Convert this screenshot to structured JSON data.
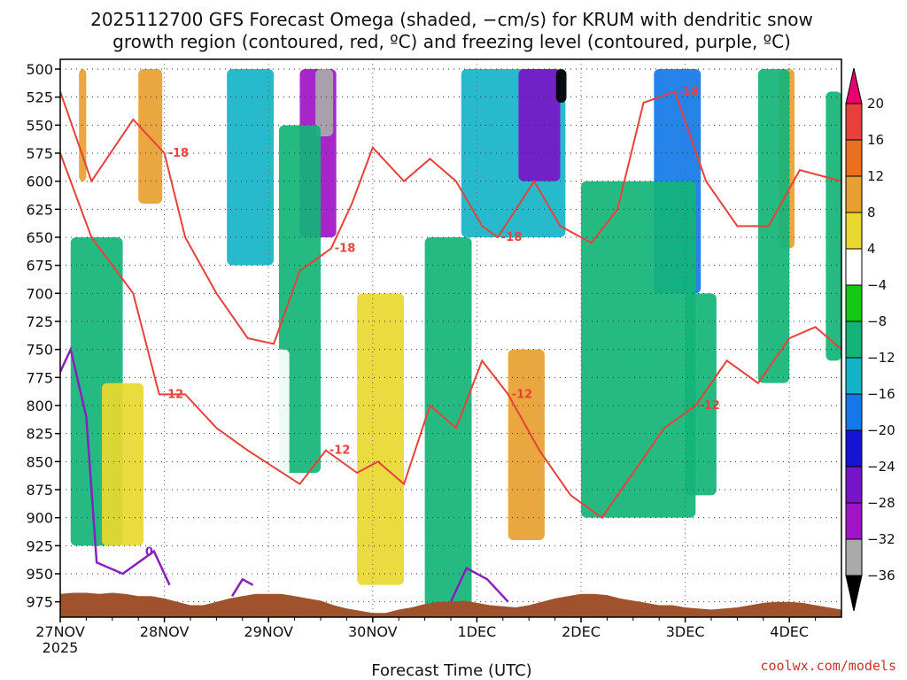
{
  "chart_data": {
    "type": "heatmap",
    "title_line1": "2025112700 GFS Forecast Omega (shaded, −cm/s) for KRUM with dendritic snow",
    "title_line2": "growth region (contoured, red, ºC) and freezing level (contoured, purple, ºC)",
    "xlabel": "Forecast Time (UTC)",
    "credit": "coolwx.com/models",
    "x_ticks": [
      "27NOV",
      "28NOV",
      "29NOV",
      "30NOV",
      "1DEC",
      "2DEC",
      "3DEC",
      "4DEC"
    ],
    "x_year": "2025",
    "x_range_days": [
      0,
      7.5
    ],
    "y_ticks": [
      500,
      525,
      550,
      575,
      600,
      625,
      650,
      675,
      700,
      725,
      750,
      775,
      800,
      825,
      850,
      875,
      900,
      925,
      950,
      975
    ],
    "y_range_hpa": [
      500,
      990
    ],
    "grid": true,
    "colorbar": {
      "levels": [
        20,
        16,
        12,
        8,
        4,
        -4,
        -8,
        -12,
        -16,
        -20,
        -24,
        -28,
        -32,
        -36
      ],
      "labels": [
        "20",
        "16",
        "12",
        "8",
        "4",
        "−4",
        "−8",
        "−12",
        "−16",
        "−20",
        "−24",
        "−28",
        "−32",
        "−36"
      ],
      "colors": [
        "#e8006e",
        "#e8403a",
        "#e8701e",
        "#e8a030",
        "#e8d830",
        "#ffffff",
        "#14c814",
        "#14b478",
        "#14b4c8",
        "#1478e8",
        "#1414d2",
        "#7814c8",
        "#a014c8",
        "#aaaaaa",
        "#000000"
      ]
    },
    "omega_blobs": [
      {
        "x": [
          0.18,
          0.25
        ],
        "p": [
          500,
          600
        ],
        "v": 12
      },
      {
        "x": [
          0.75,
          0.98
        ],
        "p": [
          500,
          620
        ],
        "v": 12
      },
      {
        "x": [
          1.6,
          2.05
        ],
        "p": [
          500,
          675
        ],
        "v": -12
      },
      {
        "x": [
          2.3,
          2.65
        ],
        "p": [
          500,
          650
        ],
        "v": -28
      },
      {
        "x": [
          2.45,
          2.62
        ],
        "p": [
          500,
          560
        ],
        "v": -32
      },
      {
        "x": [
          3.85,
          4.85
        ],
        "p": [
          500,
          650
        ],
        "v": -12
      },
      {
        "x": [
          4.4,
          4.8
        ],
        "p": [
          500,
          600
        ],
        "v": -24
      },
      {
        "x": [
          4.76,
          4.86
        ],
        "p": [
          500,
          530
        ],
        "v": -36
      },
      {
        "x": [
          5.7,
          6.15
        ],
        "p": [
          500,
          700
        ],
        "v": -16
      },
      {
        "x": [
          6.9,
          7.05
        ],
        "p": [
          500,
          660
        ],
        "v": 12
      },
      {
        "x": [
          0.1,
          0.6
        ],
        "p": [
          650,
          925
        ],
        "v": -8
      },
      {
        "x": [
          0.4,
          0.8
        ],
        "p": [
          780,
          925
        ],
        "v": 8
      },
      {
        "x": [
          2.1,
          2.5
        ],
        "p": [
          550,
          860
        ],
        "v": -8
      },
      {
        "x": [
          1.8,
          2.2
        ],
        "p": [
          750,
          950
        ],
        "v": 4
      },
      {
        "x": [
          2.5,
          3.0
        ],
        "p": [
          680,
          960
        ],
        "v": 4
      },
      {
        "x": [
          2.85,
          3.3
        ],
        "p": [
          700,
          960
        ],
        "v": 8
      },
      {
        "x": [
          3.5,
          3.95
        ],
        "p": [
          650,
          980
        ],
        "v": -8
      },
      {
        "x": [
          4.25,
          4.8
        ],
        "p": [
          650,
          980
        ],
        "v": 4
      },
      {
        "x": [
          4.3,
          4.65
        ],
        "p": [
          750,
          920
        ],
        "v": 12
      },
      {
        "x": [
          5.0,
          6.1
        ],
        "p": [
          600,
          900
        ],
        "v": -8
      },
      {
        "x": [
          6.0,
          6.3
        ],
        "p": [
          700,
          880
        ],
        "v": -8
      },
      {
        "x": [
          6.7,
          7.0
        ],
        "p": [
          500,
          780
        ],
        "v": -8
      },
      {
        "x": [
          7.35,
          7.5
        ],
        "p": [
          520,
          760
        ],
        "v": -8
      }
    ],
    "dgz_contours": [
      {
        "level": -18,
        "label": "-18",
        "x": [
          0,
          0.3,
          0.7,
          1.0,
          1.2,
          1.5,
          1.8,
          2.05,
          2.3,
          2.6,
          2.8,
          3.0,
          3.3,
          3.55,
          3.8,
          4.05,
          4.2,
          4.55,
          4.8,
          5.1,
          5.35,
          5.6,
          5.9,
          6.2,
          6.5,
          6.8,
          7.1,
          7.5
        ],
        "p": [
          520,
          600,
          545,
          575,
          650,
          700,
          740,
          745,
          680,
          660,
          620,
          570,
          600,
          580,
          600,
          640,
          650,
          600,
          640,
          655,
          625,
          530,
          520,
          600,
          640,
          640,
          590,
          600
        ]
      },
      {
        "level": -12,
        "label": "-12",
        "x": [
          0,
          0.3,
          0.7,
          0.95,
          1.2,
          1.5,
          1.8,
          2.05,
          2.3,
          2.55,
          2.85,
          3.05,
          3.3,
          3.55,
          3.8,
          4.05,
          4.3,
          4.6,
          4.9,
          5.2,
          5.5,
          5.8,
          6.1,
          6.4,
          6.7,
          7.0,
          7.25,
          7.5
        ],
        "p": [
          575,
          650,
          700,
          790,
          790,
          820,
          840,
          855,
          870,
          840,
          860,
          850,
          870,
          800,
          820,
          760,
          790,
          840,
          880,
          900,
          860,
          820,
          800,
          760,
          780,
          740,
          730,
          750
        ]
      }
    ],
    "freezing_contours": [
      {
        "label": "0",
        "x": [
          0,
          0.1,
          0.25,
          0.35,
          0.6,
          0.9,
          1.05
        ],
        "p": [
          770,
          750,
          810,
          940,
          950,
          930,
          960
        ]
      },
      {
        "label": "",
        "x": [
          1.65,
          1.75,
          1.85
        ],
        "p": [
          970,
          955,
          960
        ]
      },
      {
        "label": "",
        "x": [
          3.75,
          3.9,
          4.1,
          4.3
        ],
        "p": [
          975,
          945,
          955,
          975
        ]
      }
    ],
    "terrain_hpa": [
      968,
      967,
      967,
      968,
      967,
      968,
      970,
      970,
      972,
      975,
      978,
      978,
      975,
      972,
      970,
      968,
      968,
      968,
      970,
      972,
      974,
      978,
      981,
      983,
      985,
      985,
      982,
      980,
      977,
      975,
      975,
      974,
      976,
      978,
      979,
      980,
      978,
      975,
      972,
      970,
      968,
      968,
      969,
      972,
      974,
      976,
      978,
      978,
      980,
      981,
      982,
      981,
      980,
      978,
      976,
      975,
      975,
      976,
      978,
      980,
      982
    ]
  }
}
